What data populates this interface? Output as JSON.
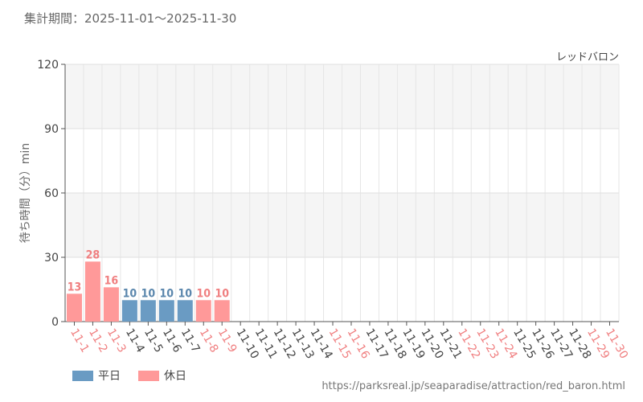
{
  "header": {
    "period_label": "集計期間：2025-11-01～2025-11-30",
    "attraction_name": "レッドバロン"
  },
  "legend": {
    "weekday_label": "平日",
    "holiday_label": "休日"
  },
  "footer": {
    "source_url": "https://parksreal.jp/seaparadise/attraction/red_baron.html"
  },
  "colors": {
    "weekday": "#6a9bc3",
    "holiday": "#ff9999",
    "weekday_text": "#5b87ad",
    "holiday_text": "#f07f80"
  },
  "chart_data": {
    "type": "bar",
    "ylabel": "待ち時間（分）min",
    "ylim": [
      0,
      120
    ],
    "yticks": [
      0,
      30,
      60,
      90,
      120
    ],
    "grid": true,
    "categories": [
      "11-1",
      "11-2",
      "11-3",
      "11-4",
      "11-5",
      "11-6",
      "11-7",
      "11-8",
      "11-9",
      "11-10",
      "11-11",
      "11-12",
      "11-13",
      "11-14",
      "11-15",
      "11-16",
      "11-17",
      "11-18",
      "11-19",
      "11-20",
      "11-21",
      "11-22",
      "11-23",
      "11-24",
      "11-25",
      "11-26",
      "11-27",
      "11-28",
      "11-29",
      "11-30"
    ],
    "values": [
      13,
      28,
      16,
      10,
      10,
      10,
      10,
      10,
      10,
      null,
      null,
      null,
      null,
      null,
      null,
      null,
      null,
      null,
      null,
      null,
      null,
      null,
      null,
      null,
      null,
      null,
      null,
      null,
      null,
      null
    ],
    "day_type": [
      "holiday",
      "holiday",
      "holiday",
      "weekday",
      "weekday",
      "weekday",
      "weekday",
      "holiday",
      "holiday",
      "weekday",
      "weekday",
      "weekday",
      "weekday",
      "weekday",
      "holiday",
      "holiday",
      "weekday",
      "weekday",
      "weekday",
      "weekday",
      "weekday",
      "holiday",
      "holiday",
      "holiday",
      "weekday",
      "weekday",
      "weekday",
      "weekday",
      "holiday",
      "holiday"
    ]
  }
}
